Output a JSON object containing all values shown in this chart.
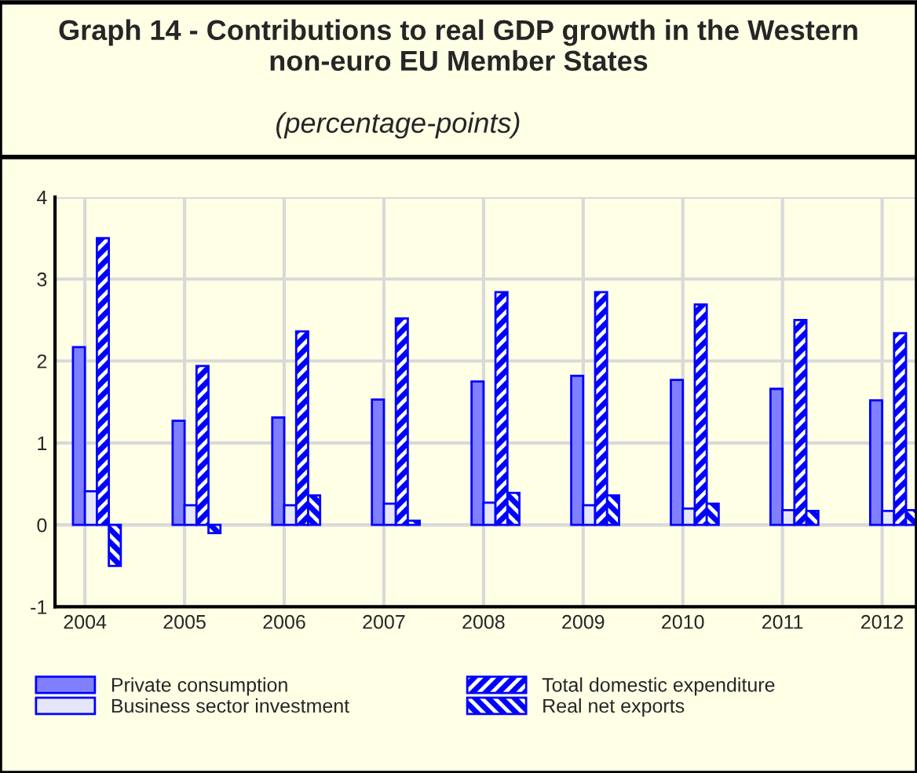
{
  "chart_data": {
    "type": "bar",
    "title": "Graph 14 - Contributions to real GDP growth in the Western non-euro EU Member States",
    "subtitle": "(percentage-points)",
    "categories": [
      "2004",
      "2005",
      "2006",
      "2007",
      "2008",
      "2009",
      "2010",
      "2011",
      "2012"
    ],
    "series": [
      {
        "name": "Private consumption",
        "color": "#8080ff",
        "values": [
          2.17,
          1.27,
          1.31,
          1.53,
          1.75,
          1.82,
          1.77,
          1.66,
          1.52
        ]
      },
      {
        "name": "Business sector investment",
        "color": "#e6e6fa",
        "values": [
          0.41,
          0.24,
          0.24,
          0.26,
          0.27,
          0.24,
          0.2,
          0.18,
          0.17
        ]
      },
      {
        "name": "Total domestic expenditure",
        "color": "#0000ff",
        "values": [
          3.5,
          1.94,
          2.36,
          2.52,
          2.84,
          2.84,
          2.69,
          2.5,
          2.34
        ]
      },
      {
        "name": "Real net exports",
        "color": "#0000ff",
        "values": [
          -0.5,
          -0.1,
          0.36,
          0.05,
          0.39,
          0.36,
          0.26,
          0.17,
          0.18
        ]
      }
    ],
    "ylim": [
      -1,
      4
    ],
    "yticks": [
      -1,
      0,
      1,
      2,
      3,
      4
    ],
    "grid": true,
    "legend": "bottom"
  }
}
